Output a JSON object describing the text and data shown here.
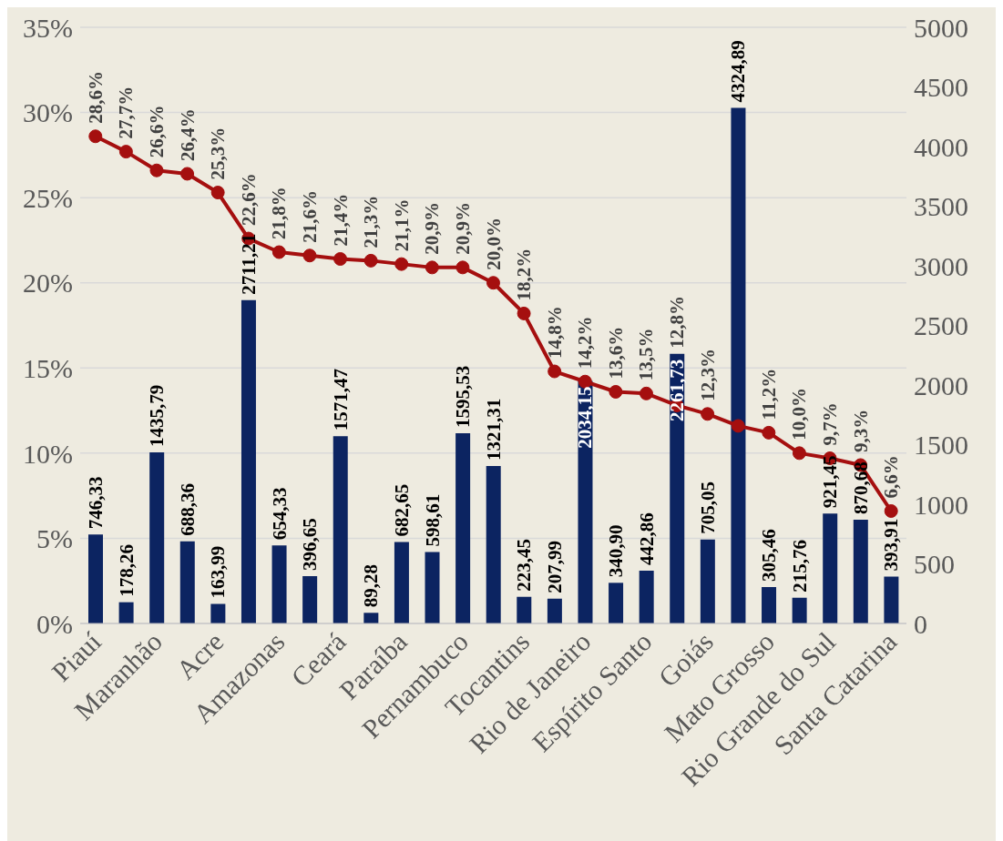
{
  "chart_data": {
    "type": "bar",
    "categories": [
      "Piauí",
      null,
      "Maranhão",
      null,
      "Acre",
      null,
      "Amazonas",
      null,
      "Ceará",
      null,
      "Paraíba",
      null,
      "Pernambuco",
      null,
      "Tocantins",
      null,
      "Rio de Janeiro",
      null,
      "Espírito Santo",
      null,
      "Goiás",
      null,
      "Mato Grosso",
      null,
      "Rio Grande do Sul",
      null,
      "Santa Catarina"
    ],
    "series": [
      {
        "axis": "y2",
        "color": "#0c2461",
        "values": [
          746.33,
          178.26,
          1435.79,
          688.36,
          163.99,
          2711.21,
          654.33,
          396.65,
          1571.47,
          89.28,
          682.65,
          598.61,
          1595.53,
          1321.31,
          223.45,
          207.99,
          2034.15,
          340.9,
          442.86,
          2261.73,
          705.05,
          4324.89,
          305.46,
          215.76,
          921.45,
          870.68,
          393.91
        ],
        "value_labels": [
          "746,33",
          "178,26",
          "1435,79",
          "688,36",
          "163,99",
          "2711,21",
          "654,33",
          "396,65",
          "1571,47",
          "89,28",
          "682,65",
          "598,61",
          "1595,53",
          "1321,31",
          "223,45",
          "207,99",
          "2034,15",
          "340,90",
          "442,86",
          "2261,73",
          "705,05",
          "4324,89",
          "305,46",
          "215,76",
          "921,45",
          "870,68",
          "393,91"
        ]
      },
      {
        "type": "line",
        "axis": "y",
        "color": "#a50f0f",
        "values": [
          28.6,
          27.7,
          26.6,
          26.4,
          25.3,
          22.6,
          21.8,
          21.6,
          21.4,
          21.3,
          21.1,
          20.9,
          20.9,
          20.0,
          18.2,
          14.8,
          14.2,
          13.6,
          13.5,
          12.8,
          12.3,
          11.6,
          11.2,
          10.0,
          9.7,
          9.3,
          6.6
        ],
        "value_labels": [
          "28,6%",
          "27,7%",
          "26,6%",
          "26,4%",
          "25,3%",
          "22,6%",
          "21,8%",
          "21,6%",
          "21,4%",
          "21,3%",
          "21,1%",
          "20,9%",
          "20,9%",
          "20,0%",
          "18,2%",
          "14,8%",
          "14,2%",
          "13,6%",
          "13,5%",
          "12,8%",
          "12,3%",
          null,
          "11,2%",
          "10,0%",
          "9,7%",
          "9,3%",
          "6,6%"
        ]
      }
    ],
    "ylim": [
      0,
      35
    ],
    "yticks": [
      {
        "value": 0,
        "label": "0%"
      },
      {
        "value": 5,
        "label": "5%"
      },
      {
        "value": 10,
        "label": "10%"
      },
      {
        "value": 15,
        "label": "15%"
      },
      {
        "value": 20,
        "label": "20%"
      },
      {
        "value": 25,
        "label": "25%"
      },
      {
        "value": 30,
        "label": "30%"
      },
      {
        "value": 35,
        "label": "35%"
      }
    ],
    "y2lim": [
      0,
      5000
    ],
    "y2ticks": [
      0,
      500,
      1000,
      1500,
      2000,
      2500,
      3000,
      3500,
      4000,
      4500,
      5000
    ],
    "grid": "y",
    "marker": "circle",
    "line_style": "solid"
  }
}
